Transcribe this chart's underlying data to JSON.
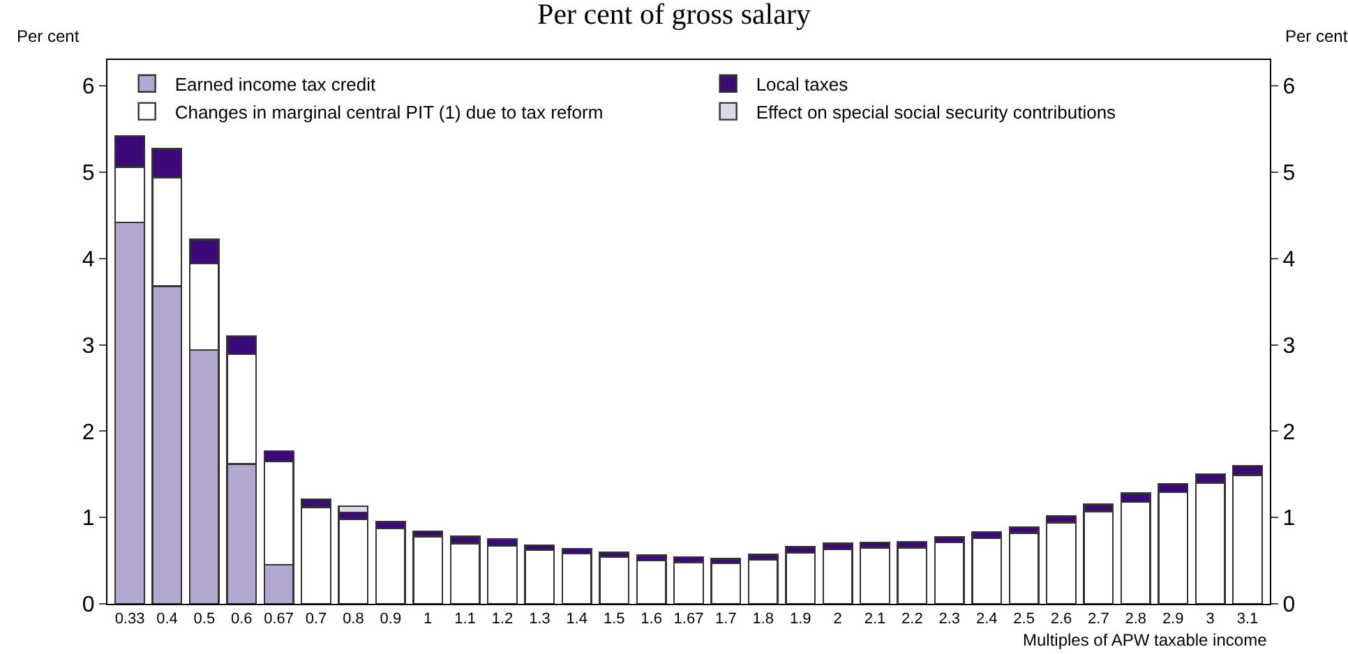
{
  "chart_data": {
    "type": "bar",
    "stacked": true,
    "title": "Per cent of gross salary",
    "ylabel": "Per cent",
    "y2label": "Per cent",
    "xlabel": "Multiples of APW taxable income",
    "categories": [
      "0.33",
      "0.4",
      "0.5",
      "0.6",
      "0.67",
      "0.7",
      "0.8",
      "0.9",
      "1",
      "1.1",
      "1.2",
      "1.3",
      "1.4",
      "1.5",
      "1.6",
      "1.67",
      "1.7",
      "1.8",
      "1.9",
      "2",
      "2.1",
      "2.2",
      "2.3",
      "2.4",
      "2.5",
      "2.6",
      "2.7",
      "2.8",
      "2.9",
      "3",
      "3.1"
    ],
    "series": [
      {
        "name": "Earned income tax credit",
        "color": "#b3a8cf",
        "values": [
          4.42,
          3.68,
          2.94,
          1.62,
          0.45,
          null,
          null,
          null,
          null,
          null,
          null,
          null,
          null,
          null,
          null,
          null,
          null,
          null,
          null,
          null,
          null,
          null,
          null,
          null,
          null,
          null,
          null,
          null,
          null,
          null,
          null
        ]
      },
      {
        "name": "Changes in marginal central PIT (1) due to tax reform",
        "color": "#ffffff",
        "values": [
          0.64,
          1.26,
          1.0,
          1.27,
          1.2,
          1.12,
          0.98,
          0.87,
          0.78,
          0.7,
          0.67,
          0.62,
          0.58,
          0.54,
          0.5,
          0.48,
          0.47,
          0.51,
          0.59,
          0.63,
          0.65,
          0.65,
          0.71,
          0.76,
          0.82,
          0.94,
          1.07,
          1.18,
          1.29,
          1.4,
          1.49
        ]
      },
      {
        "name": "Local taxes",
        "color": "#3c0a78",
        "values": [
          0.36,
          0.33,
          0.28,
          0.21,
          0.12,
          0.09,
          0.08,
          0.08,
          0.06,
          0.08,
          0.08,
          0.06,
          0.06,
          0.06,
          0.06,
          0.06,
          0.05,
          0.06,
          0.07,
          0.07,
          0.06,
          0.07,
          0.06,
          0.07,
          0.07,
          0.08,
          0.08,
          0.1,
          0.1,
          0.1,
          0.11
        ]
      },
      {
        "name": "Effect on special social security contributions",
        "color": "#ddd9ea",
        "values": [
          null,
          null,
          null,
          null,
          null,
          null,
          0.07,
          null,
          null,
          null,
          null,
          null,
          null,
          null,
          null,
          null,
          null,
          null,
          null,
          null,
          null,
          null,
          null,
          null,
          null,
          null,
          null,
          null,
          null,
          null,
          null
        ]
      }
    ],
    "ylim": [
      0,
      6.3
    ],
    "yticks": [
      0,
      1,
      2,
      3,
      4,
      5,
      6
    ],
    "y2lim": [
      0,
      6.3
    ],
    "y2ticks": [
      0,
      1,
      2,
      3,
      4,
      5,
      6
    ],
    "grid": false,
    "legend": "top"
  }
}
